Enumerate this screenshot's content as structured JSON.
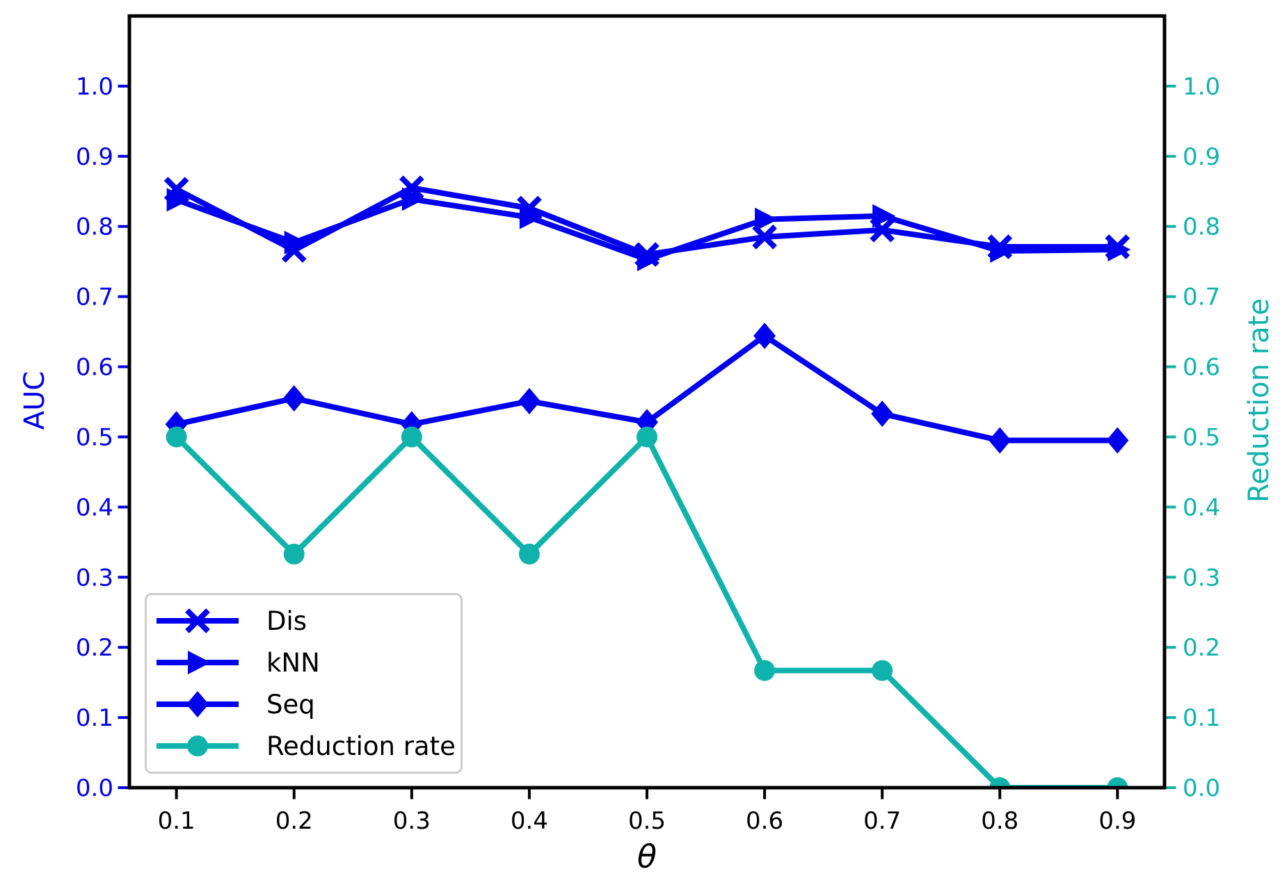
{
  "chart_data": {
    "type": "line",
    "title": "",
    "xlabel": "θ",
    "ylabel_left": "AUC",
    "ylabel_right": "Reduction rate",
    "x": [
      0.1,
      0.2,
      0.3,
      0.4,
      0.5,
      0.6,
      0.7,
      0.8,
      0.9
    ],
    "x_ticks": [
      "0.1",
      "0.2",
      "0.3",
      "0.4",
      "0.5",
      "0.6",
      "0.7",
      "0.8",
      "0.9"
    ],
    "y_ticks_left": [
      "0.0",
      "0.1",
      "0.2",
      "0.3",
      "0.4",
      "0.5",
      "0.6",
      "0.7",
      "0.8",
      "0.9",
      "1.0"
    ],
    "y_ticks_right": [
      "0.0",
      "0.1",
      "0.2",
      "0.3",
      "0.4",
      "0.5",
      "0.6",
      "0.7",
      "0.8",
      "0.9",
      "1.0"
    ],
    "xlim": [
      0.06,
      0.94
    ],
    "ylim": [
      0.0,
      1.1
    ],
    "grid": false,
    "legend_position": "lower left",
    "series": [
      {
        "name": "Dis",
        "axis": "left",
        "color": "#0000ee",
        "marker": "x",
        "values": [
          0.853,
          0.766,
          0.855,
          0.826,
          0.76,
          0.785,
          0.795,
          0.771,
          0.771
        ]
      },
      {
        "name": "kNN",
        "axis": "left",
        "color": "#0000ee",
        "marker": "triangle-right",
        "values": [
          0.838,
          0.777,
          0.839,
          0.813,
          0.753,
          0.81,
          0.815,
          0.765,
          0.767
        ]
      },
      {
        "name": "Seq",
        "axis": "left",
        "color": "#0000ee",
        "marker": "diamond",
        "values": [
          0.518,
          0.555,
          0.518,
          0.551,
          0.521,
          0.644,
          0.533,
          0.495,
          0.495
        ]
      },
      {
        "name": "Reduction rate",
        "axis": "right",
        "color": "#10b3ab",
        "marker": "circle",
        "values": [
          0.5,
          0.333,
          0.5,
          0.333,
          0.5,
          0.167,
          0.167,
          0.0,
          0.0
        ]
      }
    ]
  },
  "colors": {
    "left_axis": "#0000ee",
    "right_axis": "#10b3ab",
    "x_axis_text": "#000000",
    "spine": "#000000",
    "legend_border": "#cccccc",
    "background": "#ffffff"
  }
}
